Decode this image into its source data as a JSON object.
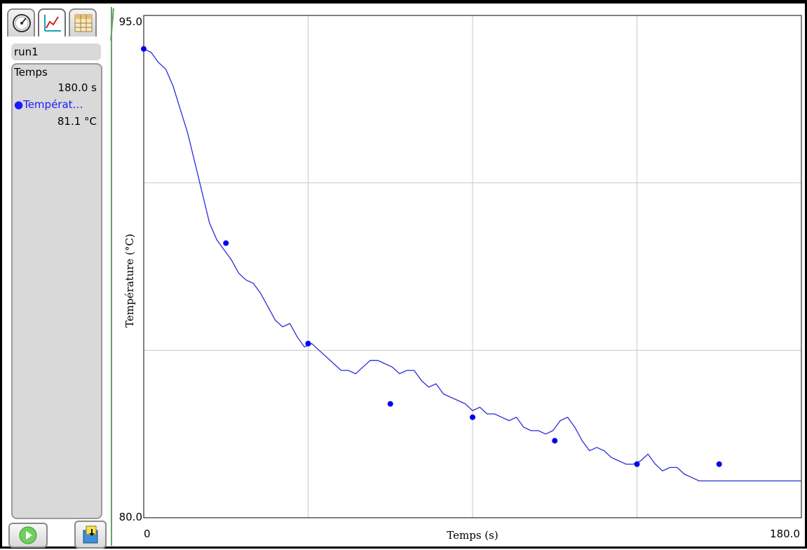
{
  "run": {
    "label": "run1"
  },
  "meters": [
    {
      "name": "Temps",
      "value": "180.0 s"
    },
    {
      "name": "Températ…",
      "value": "81.1 °C",
      "color": "#1a1aff"
    }
  ],
  "tabs": [
    {
      "icon": "gauge-icon"
    },
    {
      "icon": "graph-icon",
      "active": true
    },
    {
      "icon": "table-icon"
    }
  ],
  "buttons": {
    "play_icon": "play-icon",
    "save_icon": "save-icon"
  },
  "chart_data": {
    "type": "line",
    "xlabel": "Temps (s)",
    "ylabel": "Température (°C)",
    "xlim": [
      0,
      180
    ],
    "ylim": [
      80,
      95
    ],
    "x_tick_labels": [
      "0",
      "180.0"
    ],
    "y_tick_labels": [
      "95.0",
      "80.0"
    ],
    "grid": true,
    "line_color": "#2b2bd9",
    "marker_color": "#0000ee",
    "series": [
      {
        "x": [
          0,
          2,
          4,
          6,
          8,
          10,
          12,
          14,
          16,
          18,
          20,
          22,
          24,
          26,
          28,
          30,
          32,
          34,
          36,
          38,
          40,
          42,
          44,
          46,
          48,
          50,
          52,
          54,
          56,
          58,
          60,
          62,
          64,
          66,
          68,
          70,
          72,
          74,
          76,
          78,
          80,
          82,
          84,
          86,
          88,
          90,
          92,
          94,
          96,
          98,
          100,
          102,
          104,
          106,
          108,
          110,
          112,
          114,
          116,
          118,
          120,
          122,
          124,
          126,
          128,
          130,
          132,
          134,
          136,
          138,
          140,
          142,
          144,
          146,
          148,
          150,
          152,
          154,
          156,
          158,
          160,
          162,
          164,
          166,
          168,
          170,
          172,
          174,
          176,
          178,
          180
        ],
        "y": [
          94.0,
          93.9,
          93.6,
          93.4,
          92.9,
          92.2,
          91.5,
          90.6,
          89.7,
          88.8,
          88.3,
          88.0,
          87.7,
          87.3,
          87.1,
          87.0,
          86.7,
          86.3,
          85.9,
          85.7,
          85.8,
          85.4,
          85.1,
          85.2,
          85.0,
          84.8,
          84.6,
          84.4,
          84.4,
          84.3,
          84.5,
          84.7,
          84.7,
          84.6,
          84.5,
          84.3,
          84.4,
          84.4,
          84.1,
          83.9,
          84.0,
          83.7,
          83.6,
          83.5,
          83.4,
          83.2,
          83.3,
          83.1,
          83.1,
          83.0,
          82.9,
          83.0,
          82.7,
          82.6,
          82.6,
          82.5,
          82.6,
          82.9,
          83.0,
          82.7,
          82.3,
          82.0,
          82.1,
          82.0,
          81.8,
          81.7,
          81.6,
          81.6,
          81.7,
          81.9,
          81.6,
          81.4,
          81.5,
          81.5,
          81.3,
          81.2,
          81.1,
          81.1,
          81.1,
          81.1,
          81.1,
          81.1,
          81.1,
          81.1,
          81.1,
          81.1,
          81.1,
          81.1,
          81.1,
          81.1,
          81.1
        ]
      }
    ],
    "markers": {
      "x": [
        0,
        22.5,
        45,
        67.5,
        90,
        112.5,
        135,
        157.5
      ],
      "y": [
        94.0,
        88.2,
        85.2,
        83.4,
        83.0,
        82.3,
        81.6,
        81.6
      ]
    }
  }
}
